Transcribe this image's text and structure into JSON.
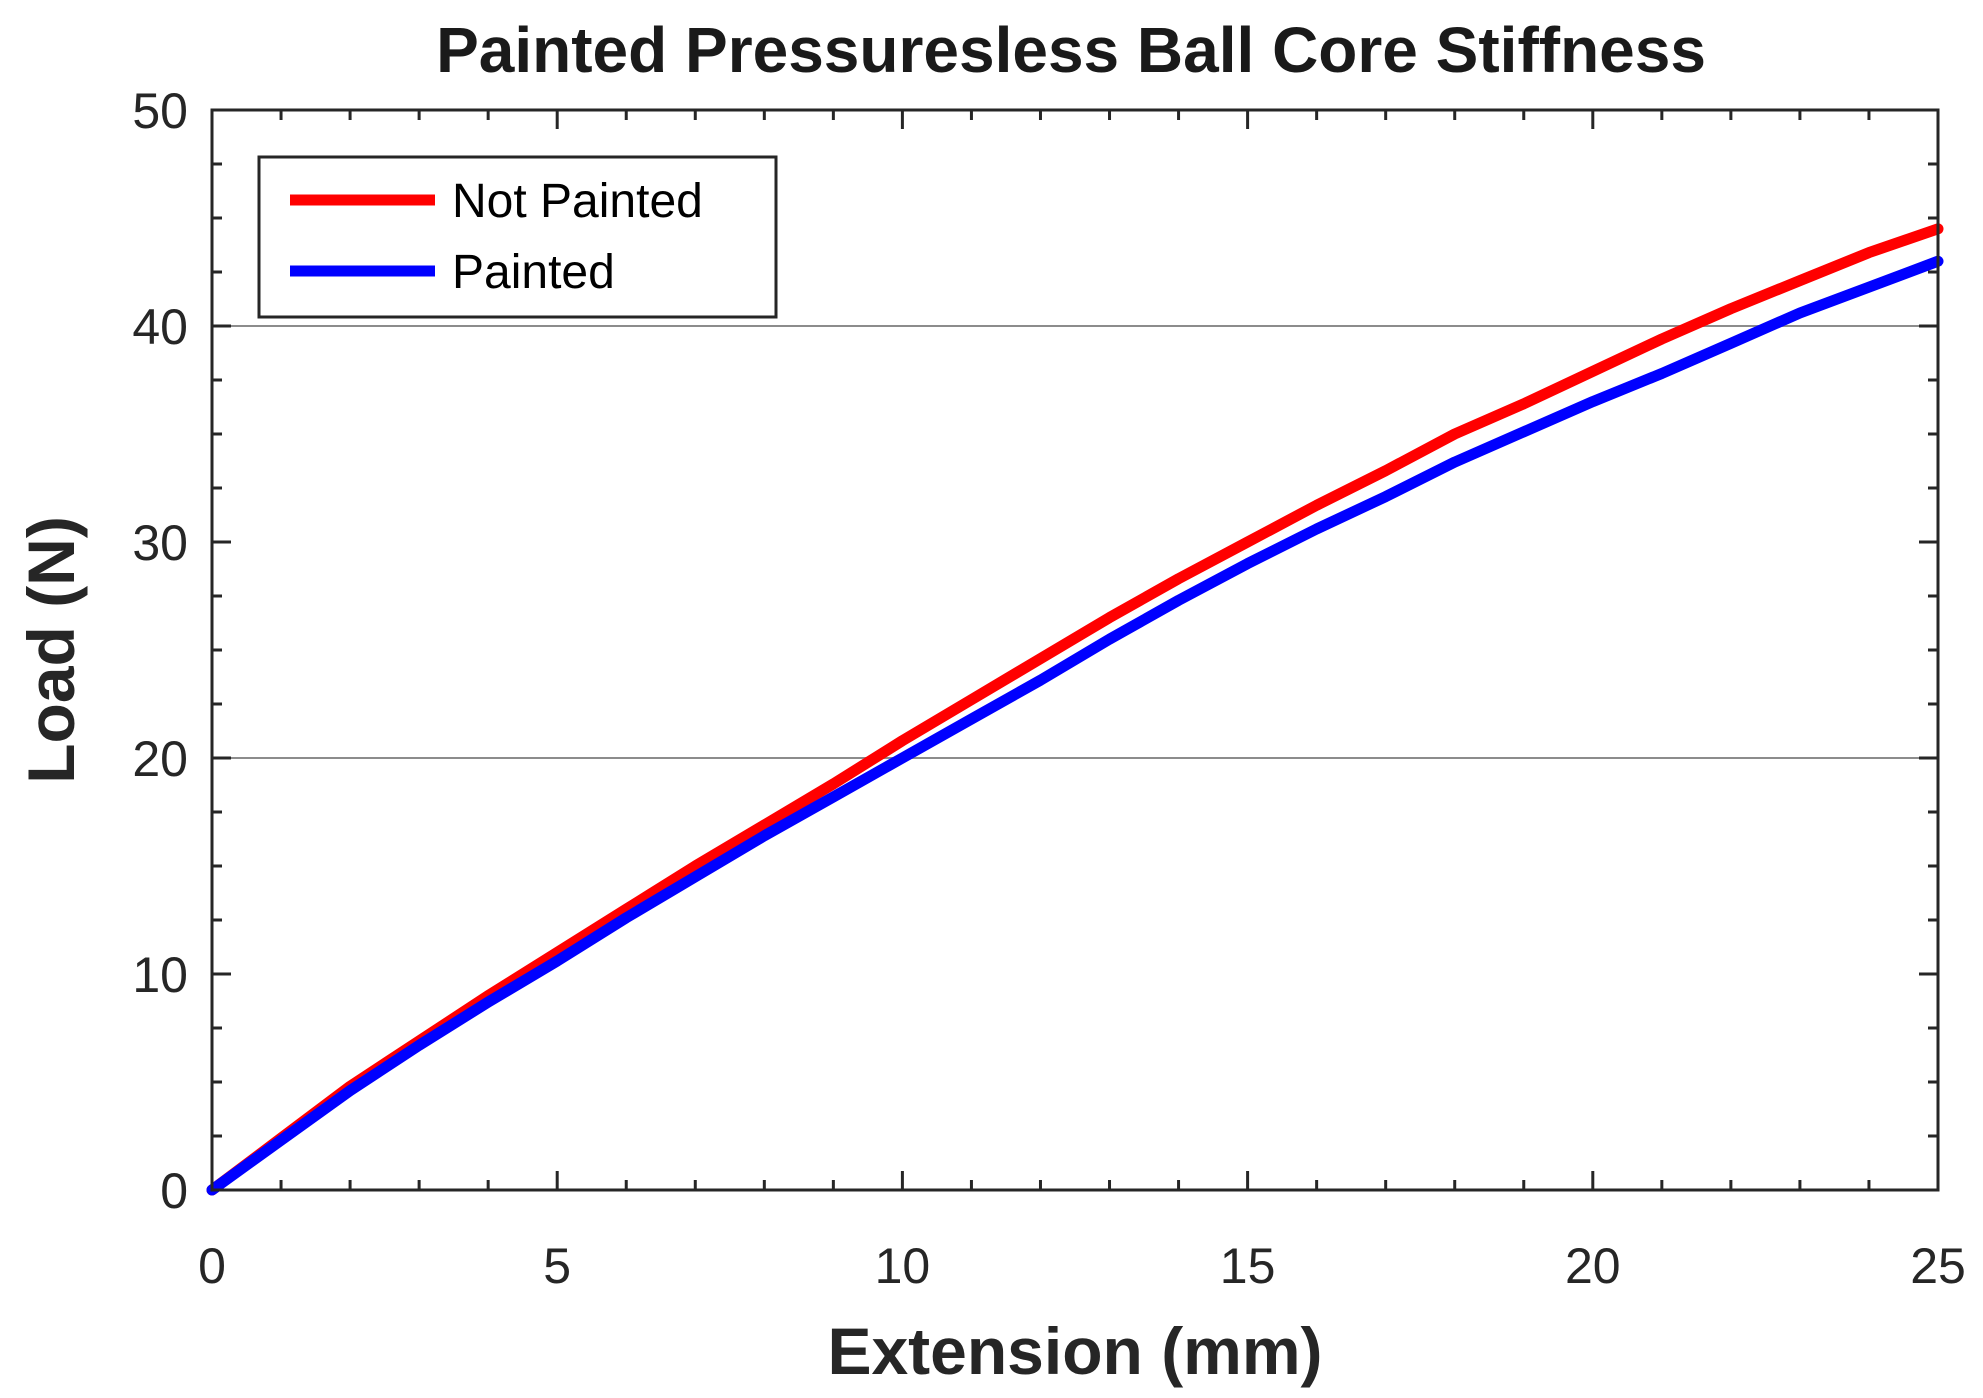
{
  "chart_data": {
    "type": "line",
    "title": "Painted Pressuresless Ball Core Stiffness",
    "xlabel": "Extension (mm)",
    "ylabel": "Load (N)",
    "xlim": [
      0,
      25
    ],
    "ylim": [
      0,
      50
    ],
    "x_ticks": [
      0,
      5,
      10,
      15,
      20,
      25
    ],
    "y_ticks": [
      0,
      10,
      20,
      30,
      40,
      50
    ],
    "x_tick_labels": [
      "0",
      "5",
      "10",
      "15",
      "20",
      "25"
    ],
    "y_tick_labels": [
      "0",
      "10",
      "20",
      "30",
      "40",
      "50"
    ],
    "x_minor_step": 1,
    "y_minor_step": 2.5,
    "grid_y": [
      20,
      40
    ],
    "legend_position": "top-left",
    "x": [
      0,
      1,
      2,
      3,
      4,
      5,
      6,
      7,
      8,
      9,
      10,
      11,
      12,
      13,
      14,
      15,
      16,
      17,
      18,
      19,
      20,
      21,
      22,
      23,
      24,
      25
    ],
    "series": [
      {
        "name": "Not Painted",
        "color": "#ff0000",
        "values": [
          0,
          2.4,
          4.8,
          6.9,
          9.0,
          11.0,
          13.0,
          15.0,
          16.9,
          18.8,
          20.8,
          22.7,
          24.6,
          26.5,
          28.3,
          30.0,
          31.7,
          33.3,
          35.0,
          36.4,
          37.9,
          39.4,
          40.8,
          42.1,
          43.4,
          44.5
        ]
      },
      {
        "name": "Painted",
        "color": "#0000ff",
        "values": [
          0,
          2.3,
          4.6,
          6.7,
          8.7,
          10.6,
          12.6,
          14.5,
          16.4,
          18.2,
          20.0,
          21.8,
          23.6,
          25.5,
          27.3,
          29.0,
          30.6,
          32.1,
          33.7,
          35.1,
          36.5,
          37.8,
          39.2,
          40.6,
          41.8,
          43.0
        ]
      }
    ]
  }
}
